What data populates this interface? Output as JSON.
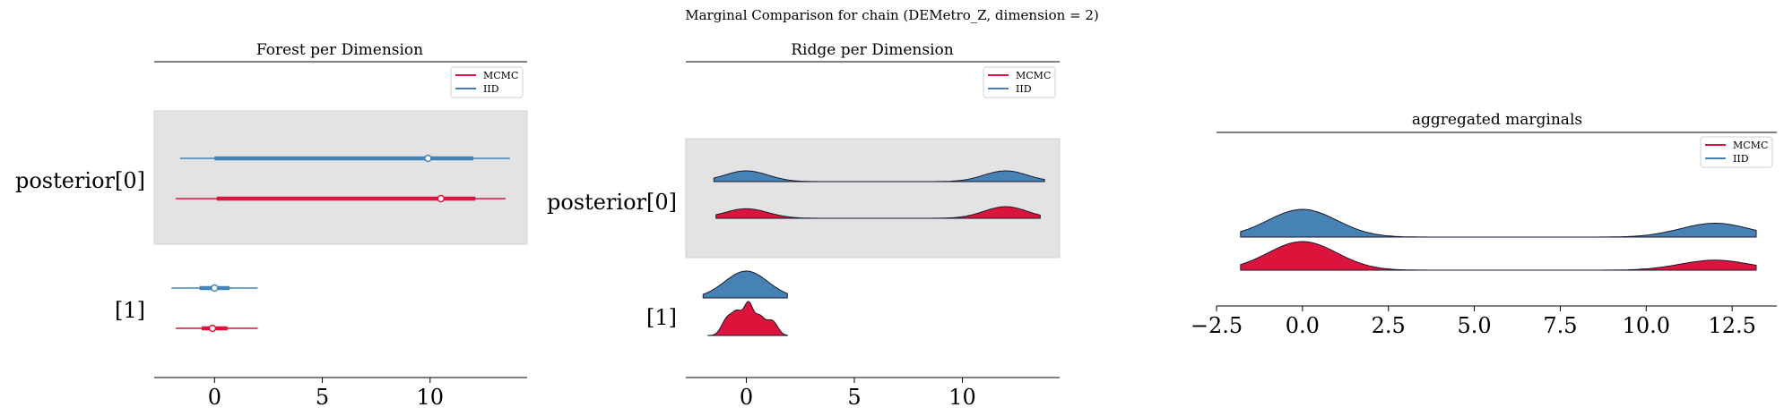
{
  "figure": {
    "suptitle": "Marginal Comparison for chain (DEMetro_Z, dimension = 2)"
  },
  "colors": {
    "mcmc": "#dc143c",
    "iid": "#4682b4",
    "band": "#e3e3e3"
  },
  "legend": [
    {
      "name": "MCMC",
      "color": "#dc143c"
    },
    {
      "name": "IID",
      "color": "#4682b4"
    }
  ],
  "chart_data": [
    {
      "type": "forest",
      "title": "Forest per Dimension",
      "xlim": [
        -2.8,
        14.5
      ],
      "xticks": [
        0,
        5,
        10
      ],
      "xtick_labels": [
        "0",
        "5",
        "10"
      ],
      "legend_position": "top-right",
      "rows": [
        {
          "label": "posterior[0]",
          "band": true,
          "series": [
            {
              "name": "IID",
              "color": "#4682b4",
              "whisker": [
                -1.6,
                13.7
              ],
              "hdi": [
                0.0,
                12.0
              ],
              "point": 9.9
            },
            {
              "name": "MCMC",
              "color": "#dc143c",
              "whisker": [
                -1.8,
                13.5
              ],
              "hdi": [
                0.1,
                12.1
              ],
              "point": 10.5
            }
          ]
        },
        {
          "label": "[1]",
          "band": false,
          "series": [
            {
              "name": "IID",
              "color": "#4682b4",
              "whisker": [
                -2.0,
                2.0
              ],
              "hdi": [
                -0.7,
                0.7
              ],
              "point": 0.0
            },
            {
              "name": "MCMC",
              "color": "#dc143c",
              "whisker": [
                -1.8,
                2.0
              ],
              "hdi": [
                -0.6,
                0.6
              ],
              "point": -0.1
            }
          ]
        }
      ]
    },
    {
      "type": "ridge",
      "title": "Ridge per Dimension",
      "xlim": [
        -2.8,
        14.5
      ],
      "xticks": [
        0,
        5,
        10
      ],
      "xtick_labels": [
        "0",
        "5",
        "10"
      ],
      "legend_position": "top-right",
      "rows": [
        {
          "label": "posterior[0]",
          "band": true,
          "series": [
            {
              "name": "IID",
              "color": "#4682b4",
              "range": [
                -1.5,
                13.8
              ],
              "modes": [
                [
                  0,
                  1.0,
                  1.0
                ],
                [
                  12,
                  1.0,
                  1.0
                ]
              ]
            },
            {
              "name": "MCMC",
              "color": "#dc143c",
              "range": [
                -1.4,
                13.6
              ],
              "modes": [
                [
                  0,
                  1.0,
                  0.9
                ],
                [
                  12,
                  1.0,
                  1.1
                ]
              ]
            }
          ]
        },
        {
          "label": "[1]",
          "band": false,
          "series": [
            {
              "name": "IID",
              "color": "#4682b4",
              "range": [
                -2.0,
                1.9
              ],
              "modes": [
                [
                  0,
                  1.0,
                  1.0
                ]
              ]
            },
            {
              "name": "MCMC",
              "color": "#dc143c",
              "range": [
                -1.8,
                1.9
              ],
              "modes": [
                [
                  -0.9,
                  0.25,
                  0.5
                ],
                [
                  -0.4,
                  0.25,
                  0.7
                ],
                [
                  0.1,
                  0.2,
                  0.9
                ],
                [
                  0.6,
                  0.25,
                  0.6
                ],
                [
                  1.2,
                  0.25,
                  0.45
                ]
              ]
            }
          ]
        }
      ]
    },
    {
      "type": "area",
      "title": "aggregated marginals",
      "xlim": [
        -2.5,
        13.8
      ],
      "xticks": [
        -2.5,
        0.0,
        2.5,
        5.0,
        7.5,
        10.0,
        12.5
      ],
      "xtick_labels": [
        "−2.5",
        "0.0",
        "2.5",
        "5.0",
        "7.5",
        "10.0",
        "12.5"
      ],
      "legend_position": "top-right",
      "series": [
        {
          "name": "IID",
          "color": "#4682b4",
          "range": [
            -1.8,
            13.2
          ],
          "modes": [
            [
              0,
              1.0,
              1.0
            ],
            [
              12,
              1.0,
              0.5
            ]
          ]
        },
        {
          "name": "MCMC",
          "color": "#dc143c",
          "range": [
            -1.8,
            13.2
          ],
          "modes": [
            [
              0,
              1.0,
              1.0
            ],
            [
              12,
              1.0,
              0.35
            ]
          ]
        }
      ]
    }
  ]
}
